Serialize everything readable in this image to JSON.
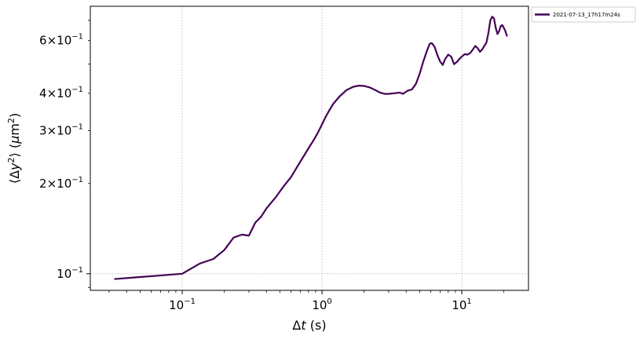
{
  "chart_data": {
    "type": "line",
    "title": "",
    "xlabel": "Δt (s)",
    "ylabel": "⟨Δy²⟩ (μm²)",
    "xscale": "log",
    "yscale": "log",
    "xlim": [
      0.022,
      30
    ],
    "ylim": [
      0.088,
      0.78
    ],
    "grid": "major, dotted, gray",
    "legend_position": "outside top-right",
    "x_ticks": [
      {
        "value": 0.1,
        "base": "10",
        "exp": "−1"
      },
      {
        "value": 1,
        "base": "10",
        "exp": "0"
      },
      {
        "value": 10,
        "base": "10",
        "exp": "1"
      }
    ],
    "y_ticks": [
      {
        "value": 0.1,
        "mant": "",
        "base": "10",
        "exp": "−1"
      },
      {
        "value": 0.2,
        "mant": "2×",
        "base": "10",
        "exp": "−1"
      },
      {
        "value": 0.3,
        "mant": "3×",
        "base": "10",
        "exp": "−1"
      },
      {
        "value": 0.4,
        "mant": "4×",
        "base": "10",
        "exp": "−1"
      },
      {
        "value": 0.6,
        "mant": "6×",
        "base": "10",
        "exp": "−1"
      }
    ],
    "series": [
      {
        "name": "2021-07-13_17h17m24s",
        "color": "#440154",
        "points": [
          [
            0.033,
            0.096
          ],
          [
            0.05,
            0.0975
          ],
          [
            0.067,
            0.0985
          ],
          [
            0.1,
            0.1
          ],
          [
            0.133,
            0.108
          ],
          [
            0.167,
            0.112
          ],
          [
            0.2,
            0.12
          ],
          [
            0.233,
            0.132
          ],
          [
            0.267,
            0.135
          ],
          [
            0.3,
            0.134
          ],
          [
            0.333,
            0.148
          ],
          [
            0.367,
            0.155
          ],
          [
            0.4,
            0.165
          ],
          [
            0.467,
            0.18
          ],
          [
            0.533,
            0.196
          ],
          [
            0.6,
            0.21
          ],
          [
            0.667,
            0.228
          ],
          [
            0.733,
            0.245
          ],
          [
            0.8,
            0.262
          ],
          [
            0.867,
            0.278
          ],
          [
            0.933,
            0.295
          ],
          [
            1.0,
            0.315
          ],
          [
            1.067,
            0.335
          ],
          [
            1.133,
            0.352
          ],
          [
            1.2,
            0.368
          ],
          [
            1.333,
            0.39
          ],
          [
            1.5,
            0.41
          ],
          [
            1.667,
            0.42
          ],
          [
            1.833,
            0.424
          ],
          [
            2.0,
            0.423
          ],
          [
            2.2,
            0.418
          ],
          [
            2.4,
            0.41
          ],
          [
            2.6,
            0.402
          ],
          [
            2.8,
            0.398
          ],
          [
            3.0,
            0.398
          ],
          [
            3.3,
            0.4
          ],
          [
            3.6,
            0.402
          ],
          [
            3.8,
            0.398
          ],
          [
            4.1,
            0.408
          ],
          [
            4.4,
            0.412
          ],
          [
            4.7,
            0.43
          ],
          [
            5.0,
            0.465
          ],
          [
            5.3,
            0.51
          ],
          [
            5.6,
            0.55
          ],
          [
            5.9,
            0.585
          ],
          [
            6.1,
            0.588
          ],
          [
            6.4,
            0.57
          ],
          [
            6.7,
            0.535
          ],
          [
            7.0,
            0.51
          ],
          [
            7.3,
            0.497
          ],
          [
            7.6,
            0.52
          ],
          [
            8.0,
            0.538
          ],
          [
            8.4,
            0.53
          ],
          [
            8.8,
            0.5
          ],
          [
            9.2,
            0.508
          ],
          [
            9.6,
            0.52
          ],
          [
            10.0,
            0.53
          ],
          [
            10.5,
            0.54
          ],
          [
            11.0,
            0.538
          ],
          [
            11.5,
            0.545
          ],
          [
            12.0,
            0.56
          ],
          [
            12.5,
            0.575
          ],
          [
            13.0,
            0.565
          ],
          [
            13.5,
            0.55
          ],
          [
            14.0,
            0.56
          ],
          [
            14.5,
            0.575
          ],
          [
            15.0,
            0.59
          ],
          [
            15.5,
            0.635
          ],
          [
            16.0,
            0.7
          ],
          [
            16.5,
            0.72
          ],
          [
            17.0,
            0.71
          ],
          [
            17.5,
            0.66
          ],
          [
            18.0,
            0.63
          ],
          [
            18.5,
            0.645
          ],
          [
            19.0,
            0.67
          ],
          [
            19.5,
            0.675
          ],
          [
            20.0,
            0.66
          ],
          [
            20.5,
            0.645
          ],
          [
            21.0,
            0.622
          ]
        ]
      }
    ]
  }
}
